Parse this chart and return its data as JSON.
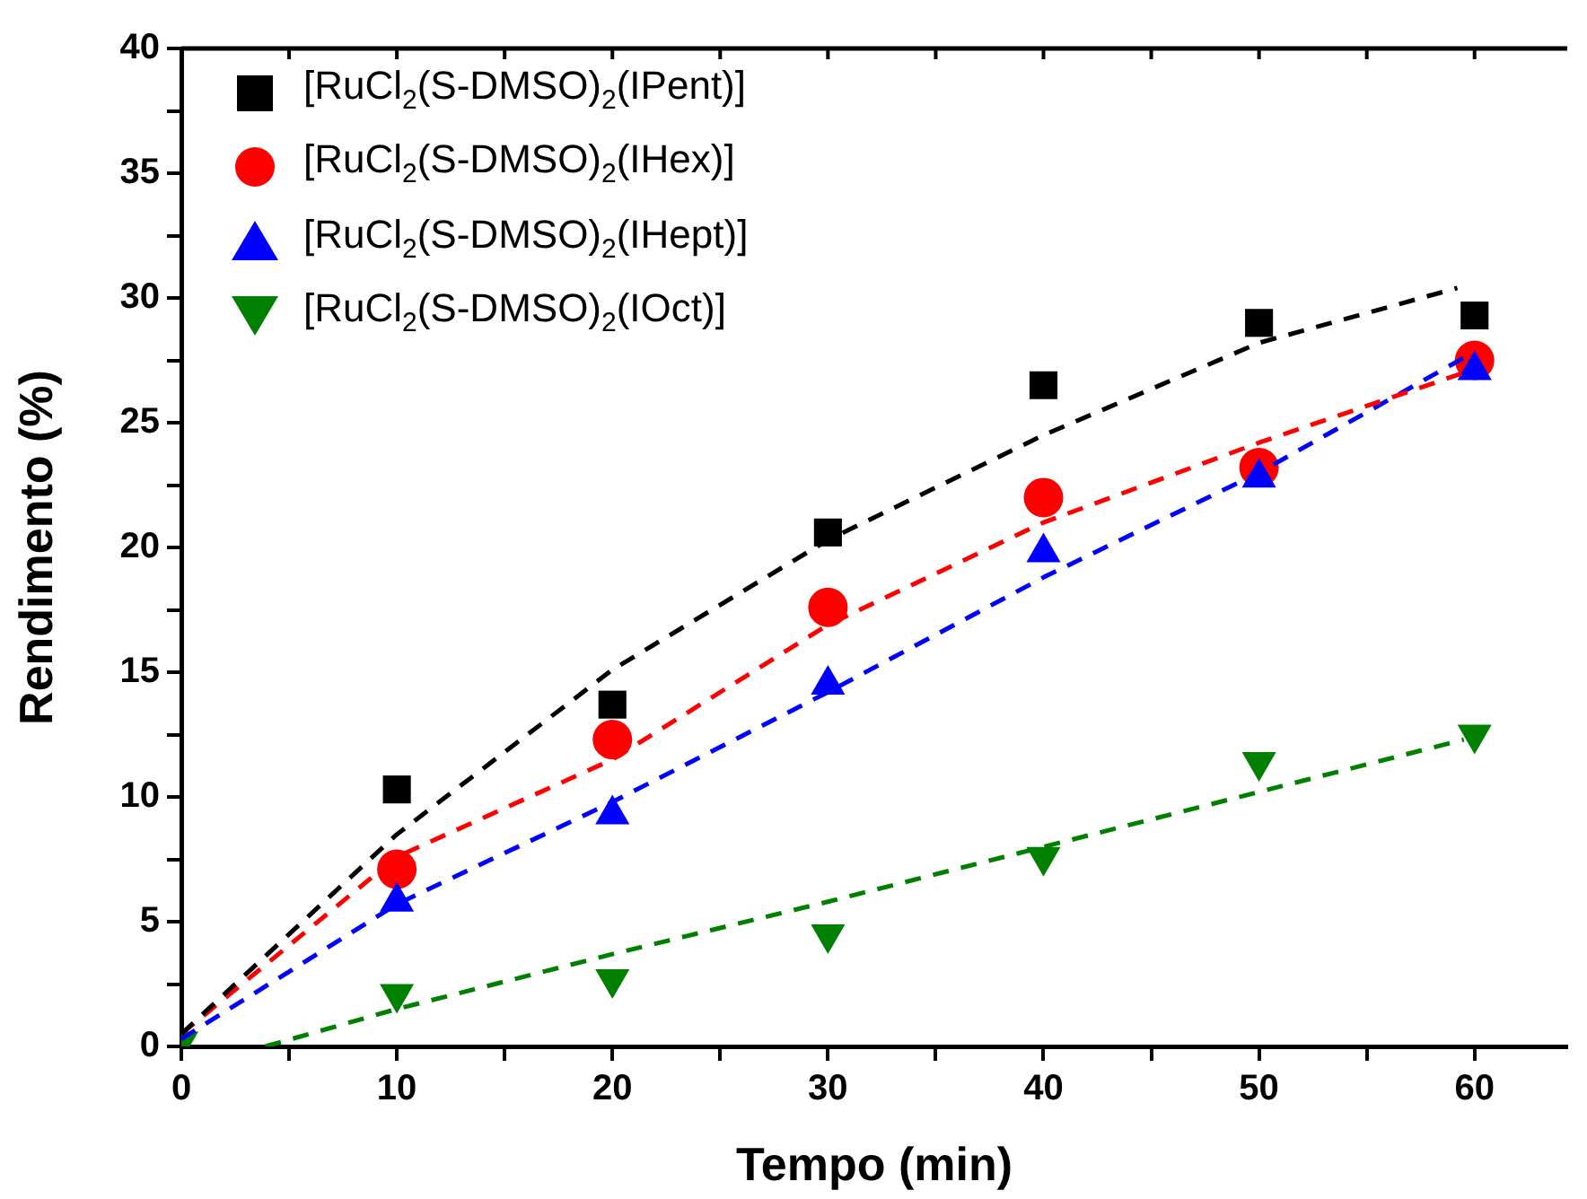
{
  "chart_data": {
    "type": "scatter",
    "xlabel": "Tempo (min)",
    "ylabel": "Rendimento (%)",
    "xlim": [
      0,
      64.3
    ],
    "ylim": [
      0,
      40
    ],
    "xticks": [
      0,
      {
        "value": 5,
        "label": null
      },
      10,
      {
        "value": 15,
        "label": null
      },
      20,
      {
        "value": 25,
        "label": null
      },
      30,
      {
        "value": 35,
        "label": null
      },
      40,
      {
        "value": 45,
        "label": null
      },
      50,
      {
        "value": 55,
        "label": null
      },
      60
    ],
    "yticks": [
      0,
      {
        "value": 2.5,
        "label": null
      },
      5,
      {
        "value": 7.5,
        "label": null
      },
      10,
      {
        "value": 12.5,
        "label": null
      },
      15,
      {
        "value": 17.5,
        "label": null
      },
      20,
      {
        "value": 22.5,
        "label": null
      },
      25,
      {
        "value": 27.5,
        "label": null
      },
      30,
      {
        "value": 32.5,
        "label": null
      },
      35,
      {
        "value": 37.5,
        "label": null
      },
      40
    ],
    "grid": false,
    "legend": "top left",
    "series": [
      {
        "name": "[RuCl$_{2}$(S-DMSO)$_{2}$(IPent)]",
        "color": "#000000",
        "marker": "square",
        "x": [
          10,
          20,
          30,
          40,
          50,
          60
        ],
        "values": [
          10.3,
          13.7,
          20.6,
          26.5,
          29.0,
          29.3
        ]
      },
      {
        "name": "[RuCl$_{2}$(S-DMSO)$_{2}$(IHex)]",
        "color": "#ff0000",
        "marker": "circle",
        "x": [
          10,
          20,
          30,
          40,
          50,
          60
        ],
        "values": [
          7.1,
          12.3,
          17.6,
          22.0,
          23.2,
          27.5
        ]
      },
      {
        "name": "[RuCl$_{2}$(S-DMSO)$_{2}$(IHept)]",
        "color": "#0000ff",
        "marker": "triangle",
        "x": [
          10,
          20,
          30,
          40,
          50,
          60
        ],
        "values": [
          5.8,
          9.3,
          14.5,
          19.8,
          22.8,
          27.1
        ]
      },
      {
        "name": "[RuCl$_{2}$(S-DMSO)$_{2}$(IOct)]",
        "color": "#008000",
        "marker": "triangle_down",
        "x": [
          0,
          10,
          20,
          30,
          40,
          50,
          60
        ],
        "values": [
          0.2,
          2.1,
          2.7,
          4.5,
          7.6,
          11.4,
          12.5
        ]
      },
      {
        "type": "line",
        "color": "#000000",
        "line_style": "dashed",
        "x": [
          0,
          10,
          20,
          30,
          40,
          50,
          59.2
        ],
        "values": [
          0.5,
          8.5,
          15.1,
          20.3,
          24.5,
          28.2,
          30.4
        ]
      },
      {
        "type": "line",
        "color": "#ff0000",
        "line_style": "dashed",
        "x": [
          0,
          10,
          20,
          30,
          40,
          50,
          59.5
        ],
        "values": [
          0.5,
          7.6,
          11.5,
          16.9,
          21.0,
          24.2,
          27.0
        ]
      },
      {
        "type": "line",
        "color": "#0000ff",
        "line_style": "dashed",
        "x": [
          0,
          10,
          20,
          30,
          40,
          50,
          59.5
        ],
        "values": [
          0.3,
          5.7,
          9.8,
          14.2,
          18.8,
          23.0,
          27.6
        ]
      },
      {
        "type": "line",
        "color": "#008000",
        "line_style": "dashed",
        "x": [
          3.9,
          10,
          20,
          30,
          40,
          50,
          59.5
        ],
        "values": [
          0,
          1.5,
          3.7,
          5.8,
          8.0,
          10.2,
          12.3
        ]
      }
    ]
  }
}
